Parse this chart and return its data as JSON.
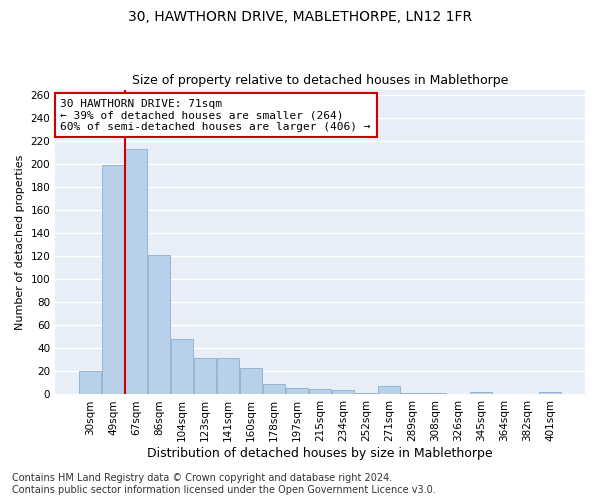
{
  "title": "30, HAWTHORN DRIVE, MABLETHORPE, LN12 1FR",
  "subtitle": "Size of property relative to detached houses in Mablethorpe",
  "xlabel": "Distribution of detached houses by size in Mablethorpe",
  "ylabel": "Number of detached properties",
  "categories": [
    "30sqm",
    "49sqm",
    "67sqm",
    "86sqm",
    "104sqm",
    "123sqm",
    "141sqm",
    "160sqm",
    "178sqm",
    "197sqm",
    "215sqm",
    "234sqm",
    "252sqm",
    "271sqm",
    "289sqm",
    "308sqm",
    "326sqm",
    "345sqm",
    "364sqm",
    "382sqm",
    "401sqm"
  ],
  "values": [
    20,
    199,
    213,
    121,
    48,
    32,
    32,
    23,
    9,
    6,
    5,
    4,
    1,
    7,
    1,
    1,
    0,
    2,
    0,
    0,
    2
  ],
  "bar_color": "#b8d0ea",
  "bar_edgecolor": "#8ab0d0",
  "vline_x": 1.5,
  "vline_color": "#cc0000",
  "annotation_text": "30 HAWTHORN DRIVE: 71sqm\n← 39% of detached houses are smaller (264)\n60% of semi-detached houses are larger (406) →",
  "annotation_box_color": "#ffffff",
  "annotation_box_edgecolor": "#cc0000",
  "ylim": [
    0,
    265
  ],
  "yticks": [
    0,
    20,
    40,
    60,
    80,
    100,
    120,
    140,
    160,
    180,
    200,
    220,
    240,
    260
  ],
  "background_color": "#e8eef8",
  "grid_color": "#ffffff",
  "footer": "Contains HM Land Registry data © Crown copyright and database right 2024.\nContains public sector information licensed under the Open Government Licence v3.0.",
  "title_fontsize": 10,
  "subtitle_fontsize": 9,
  "xlabel_fontsize": 9,
  "ylabel_fontsize": 8,
  "tick_fontsize": 7.5,
  "annotation_fontsize": 8,
  "footer_fontsize": 7
}
